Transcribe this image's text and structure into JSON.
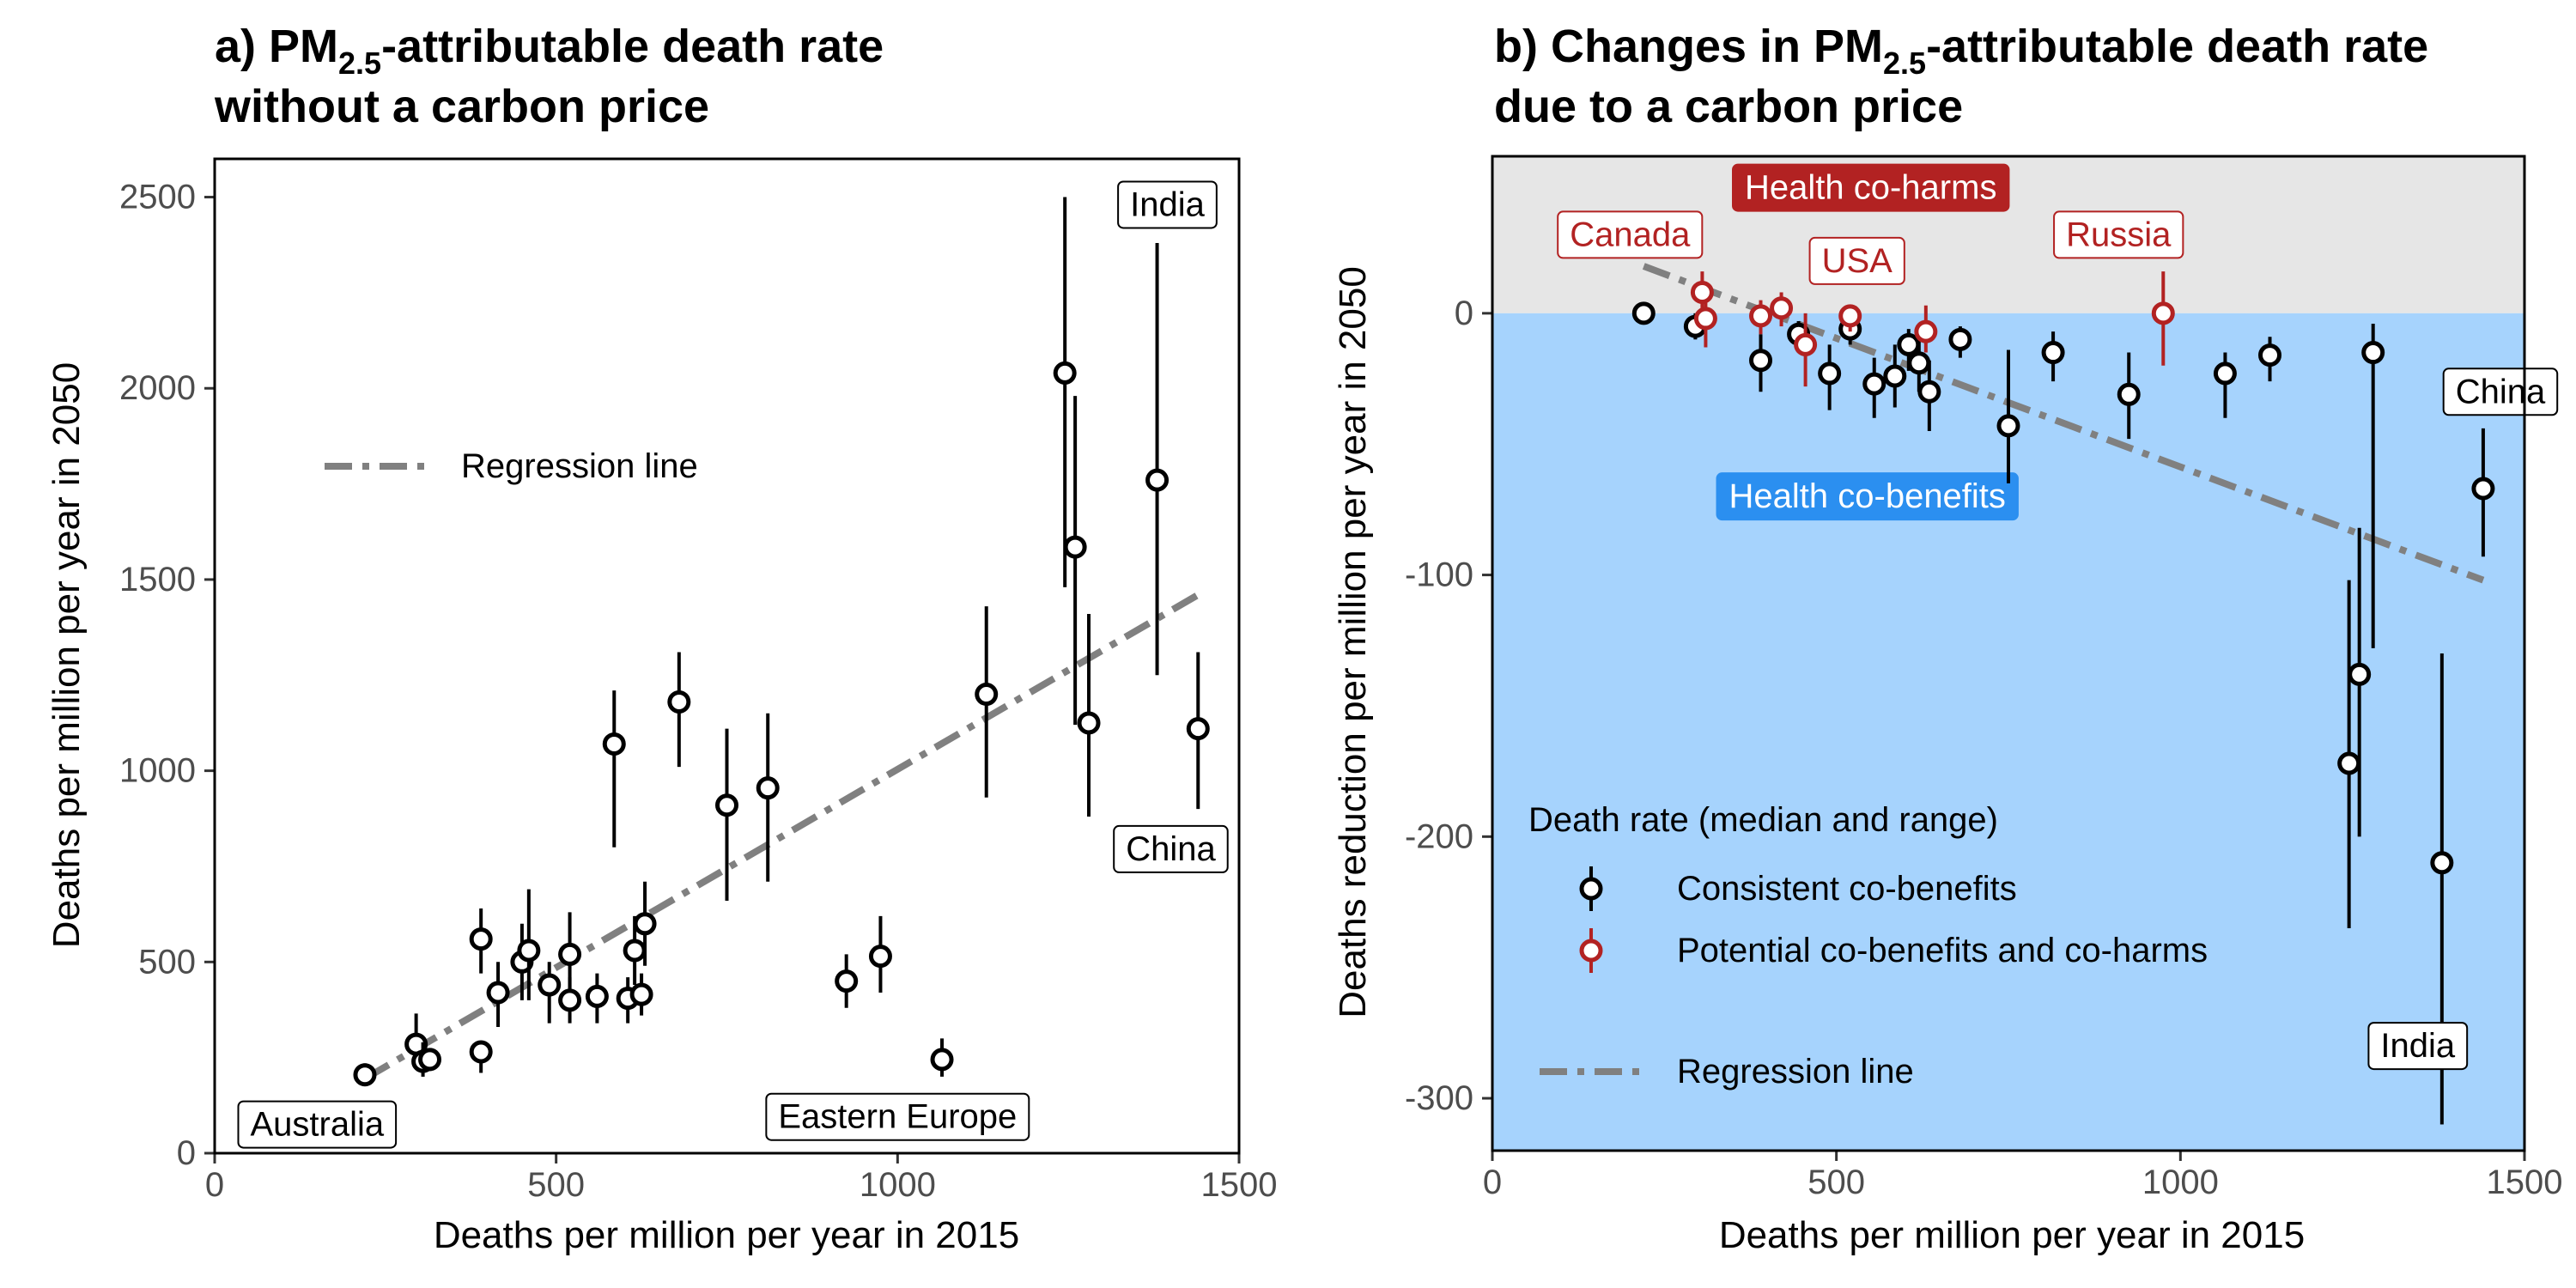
{
  "chart_data": [
    {
      "type": "scatter",
      "title": {
        "prefix": "a) PM",
        "sub": "2.5",
        "suffix": "-attributable death rate",
        "line2": "without a carbon price"
      },
      "xlabel": "Deaths per million per year in 2015",
      "ylabel": "Deaths per million per year in 2050",
      "xlim": [
        0,
        1500
      ],
      "ylim": [
        0,
        2600
      ],
      "xticks": [
        0,
        500,
        1000,
        1500
      ],
      "yticks": [
        0,
        500,
        1000,
        1500,
        2000,
        2500
      ],
      "grid": false,
      "legend": {
        "position": "top-left",
        "items": [
          {
            "label": "Regression line",
            "style": "dash-dot",
            "color": "#808080"
          }
        ]
      },
      "regression_line": {
        "x": [
          220,
          1440
        ],
        "y": [
          195,
          1460
        ],
        "color": "#808080"
      },
      "points": [
        {
          "x": 220,
          "y": 205,
          "ymin": 180,
          "ymax": 235
        },
        {
          "x": 295,
          "y": 285,
          "ymin": 250,
          "ymax": 365
        },
        {
          "x": 305,
          "y": 240,
          "ymin": 200,
          "ymax": 290
        },
        {
          "x": 315,
          "y": 245,
          "ymin": 215,
          "ymax": 275
        },
        {
          "x": 390,
          "y": 560,
          "ymin": 470,
          "ymax": 640
        },
        {
          "x": 390,
          "y": 265,
          "ymin": 210,
          "ymax": 290
        },
        {
          "x": 415,
          "y": 420,
          "ymin": 330,
          "ymax": 500
        },
        {
          "x": 450,
          "y": 500,
          "ymin": 400,
          "ymax": 600
        },
        {
          "x": 460,
          "y": 530,
          "ymin": 400,
          "ymax": 690
        },
        {
          "x": 490,
          "y": 440,
          "ymin": 340,
          "ymax": 500
        },
        {
          "x": 520,
          "y": 400,
          "ymin": 340,
          "ymax": 460
        },
        {
          "x": 520,
          "y": 520,
          "ymin": 430,
          "ymax": 630
        },
        {
          "x": 560,
          "y": 410,
          "ymin": 340,
          "ymax": 470
        },
        {
          "x": 585,
          "y": 1070,
          "ymin": 800,
          "ymax": 1210
        },
        {
          "x": 605,
          "y": 405,
          "ymin": 340,
          "ymax": 460
        },
        {
          "x": 615,
          "y": 530,
          "ymin": 440,
          "ymax": 620
        },
        {
          "x": 625,
          "y": 415,
          "ymin": 360,
          "ymax": 470
        },
        {
          "x": 630,
          "y": 600,
          "ymin": 490,
          "ymax": 710
        },
        {
          "x": 680,
          "y": 1180,
          "ymin": 1010,
          "ymax": 1310
        },
        {
          "x": 750,
          "y": 910,
          "ymin": 660,
          "ymax": 1110
        },
        {
          "x": 810,
          "y": 955,
          "ymin": 710,
          "ymax": 1150
        },
        {
          "x": 925,
          "y": 450,
          "ymin": 380,
          "ymax": 520
        },
        {
          "x": 975,
          "y": 515,
          "ymin": 420,
          "ymax": 620
        },
        {
          "x": 1065,
          "y": 245,
          "ymin": 200,
          "ymax": 300
        },
        {
          "x": 1130,
          "y": 1200,
          "ymin": 930,
          "ymax": 1430
        },
        {
          "x": 1245,
          "y": 2040,
          "ymin": 1480,
          "ymax": 2500
        },
        {
          "x": 1260,
          "y": 1585,
          "ymin": 1120,
          "ymax": 1980
        },
        {
          "x": 1280,
          "y": 1125,
          "ymin": 880,
          "ymax": 1410
        },
        {
          "x": 1380,
          "y": 1760,
          "ymin": 1250,
          "ymax": 2380
        },
        {
          "x": 1440,
          "y": 1110,
          "ymin": 900,
          "ymax": 1310
        }
      ],
      "annotations": [
        {
          "text": "India",
          "x": 1395,
          "y": 2480
        },
        {
          "text": "China",
          "x": 1400,
          "y": 795
        },
        {
          "text": "Australia",
          "x": 150,
          "y": 75
        },
        {
          "text": "Eastern Europe",
          "x": 1000,
          "y": 95
        }
      ]
    },
    {
      "type": "scatter",
      "title": {
        "prefix": "b) Changes in PM",
        "sub": "2.5",
        "suffix": "-attributable death rate",
        "line2": "due to a carbon price"
      },
      "xlabel": "Deaths per million per year in 2015",
      "ylabel": "Deaths reduction per million per year in 2050",
      "xlim": [
        0,
        1500
      ],
      "ylim": [
        -320,
        60
      ],
      "xticks": [
        0,
        500,
        1000,
        1500
      ],
      "yticks": [
        0,
        -100,
        -200,
        -300
      ],
      "grid": false,
      "regions": [
        {
          "label": "Health co-harms",
          "from": 0,
          "to": 60,
          "color": "#e6e6e6",
          "label_color": "#b22222",
          "label_x": 550,
          "label_y": 48
        },
        {
          "label": "Health co-benefits",
          "from": -320,
          "to": 0,
          "color": "#a6d3fd",
          "label_color": "#2b8ff0",
          "label_x": 545,
          "label_y": -70
        }
      ],
      "legend": {
        "position": "bottom-left",
        "title": "Death rate (median and range)",
        "items": [
          {
            "label": "Consistent co-benefits",
            "color": "#000000",
            "style": "point-range"
          },
          {
            "label": "Potential co-benefits and co-harms",
            "color": "#b22222",
            "style": "point-range"
          },
          {
            "label": "Regression line",
            "color": "#808080",
            "style": "dash-dot"
          }
        ]
      },
      "regression_line": {
        "x": [
          220,
          1440
        ],
        "y": [
          18,
          -102
        ],
        "color": "#808080"
      },
      "series": [
        {
          "name": "Consistent co-benefits",
          "color": "#000000",
          "points": [
            {
              "x": 220,
              "y": 0,
              "ymin": -2,
              "ymax": 2
            },
            {
              "x": 295,
              "y": -5,
              "ymin": -10,
              "ymax": 0
            },
            {
              "x": 390,
              "y": -18,
              "ymin": -30,
              "ymax": -8
            },
            {
              "x": 445,
              "y": -8,
              "ymin": -15,
              "ymax": -3
            },
            {
              "x": 490,
              "y": -23,
              "ymin": -37,
              "ymax": -12
            },
            {
              "x": 520,
              "y": -6,
              "ymin": -12,
              "ymax": -2
            },
            {
              "x": 555,
              "y": -27,
              "ymin": -40,
              "ymax": -17
            },
            {
              "x": 585,
              "y": -24,
              "ymin": -36,
              "ymax": -12
            },
            {
              "x": 605,
              "y": -12,
              "ymin": -22,
              "ymax": -6
            },
            {
              "x": 620,
              "y": -19,
              "ymin": -30,
              "ymax": -8
            },
            {
              "x": 635,
              "y": -30,
              "ymin": -45,
              "ymax": -18
            },
            {
              "x": 680,
              "y": -10,
              "ymin": -17,
              "ymax": -5
            },
            {
              "x": 750,
              "y": -43,
              "ymin": -65,
              "ymax": -14
            },
            {
              "x": 815,
              "y": -15,
              "ymin": -26,
              "ymax": -7
            },
            {
              "x": 925,
              "y": -31,
              "ymin": -48,
              "ymax": -15
            },
            {
              "x": 1065,
              "y": -23,
              "ymin": -40,
              "ymax": -15
            },
            {
              "x": 1130,
              "y": -16,
              "ymin": -26,
              "ymax": -9
            },
            {
              "x": 1245,
              "y": -172,
              "ymin": -235,
              "ymax": -102
            },
            {
              "x": 1260,
              "y": -138,
              "ymin": -200,
              "ymax": -82
            },
            {
              "x": 1280,
              "y": -15,
              "ymin": -128,
              "ymax": -4
            },
            {
              "x": 1380,
              "y": -210,
              "ymin": -310,
              "ymax": -130
            },
            {
              "x": 1440,
              "y": -67,
              "ymin": -93,
              "ymax": -44
            }
          ]
        },
        {
          "name": "Potential co-benefits and co-harms",
          "color": "#b22222",
          "points": [
            {
              "x": 305,
              "y": 8,
              "ymin": 0,
              "ymax": 16
            },
            {
              "x": 310,
              "y": -2,
              "ymin": -13,
              "ymax": 5
            },
            {
              "x": 390,
              "y": -1,
              "ymin": -8,
              "ymax": 5
            },
            {
              "x": 420,
              "y": 2,
              "ymin": -5,
              "ymax": 8
            },
            {
              "x": 455,
              "y": -12,
              "ymin": -28,
              "ymax": 0
            },
            {
              "x": 520,
              "y": -1,
              "ymin": -7,
              "ymax": 3
            },
            {
              "x": 630,
              "y": -7,
              "ymin": -15,
              "ymax": 3
            },
            {
              "x": 975,
              "y": 0,
              "ymin": -20,
              "ymax": 16
            }
          ]
        }
      ],
      "annotations": [
        {
          "text": "Canada",
          "x": 200,
          "y": 30,
          "color": "#b22222"
        },
        {
          "text": "USA",
          "x": 530,
          "y": 20,
          "color": "#b22222"
        },
        {
          "text": "Russia",
          "x": 910,
          "y": 30,
          "color": "#b22222"
        },
        {
          "text": "China",
          "x": 1465,
          "y": -30,
          "color": "#000000"
        },
        {
          "text": "India",
          "x": 1345,
          "y": -280,
          "color": "#000000"
        }
      ]
    }
  ]
}
